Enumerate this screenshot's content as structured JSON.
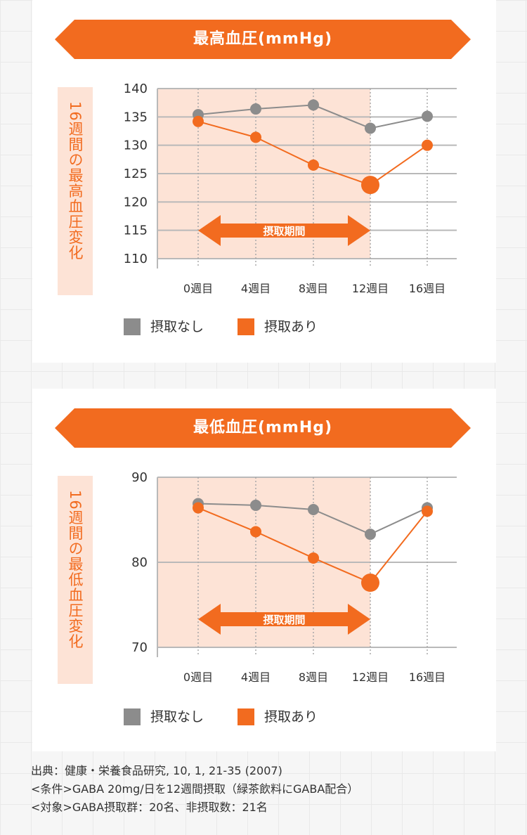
{
  "colors": {
    "orange": "#f26b1f",
    "gray": "#8c8c8c",
    "shade": "#fde3d6",
    "grid": "#b9b9b9"
  },
  "chart_data": [
    {
      "type": "line",
      "title": "最高血圧(mmHg)",
      "ylabel": "16週間の最高血圧変化",
      "categories": [
        "0週目",
        "4週目",
        "8週目",
        "12週目",
        "16週目"
      ],
      "yticks": [
        "140",
        "135",
        "130",
        "125",
        "120",
        "115",
        "110"
      ],
      "ylim": [
        110,
        140
      ],
      "highlight": {
        "label": "摂取期間",
        "from_index": 0,
        "to_index": 3
      },
      "emphasized_point": {
        "series_index": 1,
        "category_index": 3
      },
      "series": [
        {
          "name": "摂取なし",
          "color": "#8c8c8c",
          "values": [
            135.4,
            136.4,
            137.1,
            133.0,
            135.1
          ]
        },
        {
          "name": "摂取あり",
          "color": "#f26b1f",
          "values": [
            134.2,
            131.4,
            126.5,
            123.0,
            130.0
          ]
        }
      ],
      "grid": true,
      "legend_position": "bottom-left"
    },
    {
      "type": "line",
      "title": "最低血圧(mmHg)",
      "ylabel": "16週間の最低血圧変化",
      "categories": [
        "0週目",
        "4週目",
        "8週目",
        "12週目",
        "16週目"
      ],
      "yticks": [
        "90",
        "80",
        "70"
      ],
      "ylim": [
        70,
        90
      ],
      "highlight": {
        "label": "摂取期間",
        "from_index": 0,
        "to_index": 3
      },
      "emphasized_point": {
        "series_index": 1,
        "category_index": 3
      },
      "series": [
        {
          "name": "摂取なし",
          "color": "#8c8c8c",
          "values": [
            86.9,
            86.7,
            86.2,
            83.3,
            86.4
          ]
        },
        {
          "name": "摂取あり",
          "color": "#f26b1f",
          "values": [
            86.4,
            83.6,
            80.5,
            77.6,
            86.0
          ]
        }
      ],
      "grid": true,
      "legend_position": "bottom-left"
    }
  ],
  "footnotes": [
    "出典：健康・栄養食品研究, 10, 1, 21-35 (2007)",
    "<条件>GABA 20mg/日を12週間摂取（緑茶飲料にGABA配合）",
    "<対象>GABA摂取群：20名、非摂取数：21名"
  ]
}
